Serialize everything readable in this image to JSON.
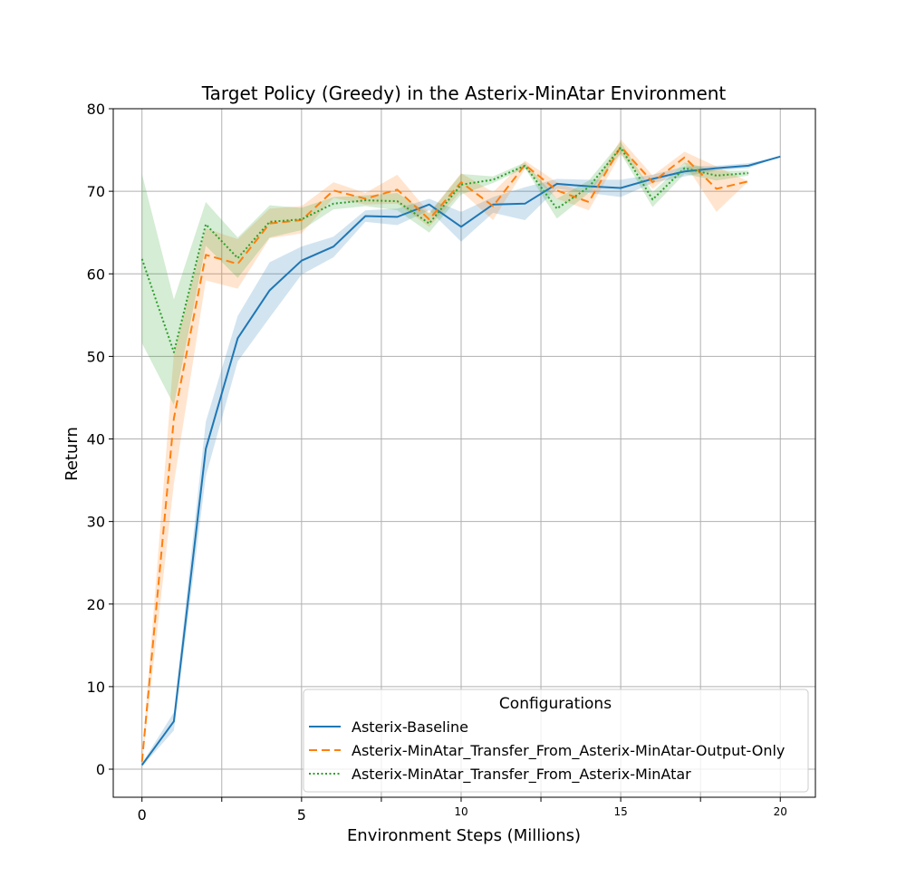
{
  "chart_data": {
    "type": "line",
    "title": "Target Policy (Greedy) in the Asterix-MinAtar Environment",
    "xlabel": "Environment Steps (Millions)",
    "ylabel": "Return",
    "xlim": [
      -0.9,
      21.1
    ],
    "ylim": [
      -3.4,
      80
    ],
    "x_ticks": [
      {
        "value": 0,
        "label": "0",
        "size": "large"
      },
      {
        "value": 2.5,
        "label": "",
        "size": "none"
      },
      {
        "value": 5,
        "label": "5",
        "size": "large"
      },
      {
        "value": 7.5,
        "label": "",
        "size": "none"
      },
      {
        "value": 10,
        "label": "10",
        "size": "small"
      },
      {
        "value": 12.5,
        "label": "",
        "size": "none"
      },
      {
        "value": 15,
        "label": "15",
        "size": "small"
      },
      {
        "value": 17.5,
        "label": "",
        "size": "none"
      },
      {
        "value": 20,
        "label": "20",
        "size": "small"
      }
    ],
    "y_ticks": [
      0,
      10,
      20,
      30,
      40,
      50,
      60,
      70,
      80
    ],
    "grid": true,
    "legend": {
      "title": "Configurations",
      "placement": "lower right"
    },
    "series": [
      {
        "name": "Asterix-Baseline",
        "color": "#1f77b4",
        "style": "solid",
        "x": [
          0,
          1,
          2,
          3,
          4,
          5,
          6,
          7,
          8,
          9,
          10,
          11,
          12,
          13,
          14,
          15,
          16,
          17,
          18,
          19,
          20
        ],
        "y": [
          0.5,
          5.8,
          38.8,
          52.2,
          58.0,
          61.6,
          63.3,
          67.0,
          66.9,
          68.4,
          65.7,
          68.4,
          68.5,
          70.9,
          70.6,
          70.4,
          71.5,
          72.4,
          72.8,
          73.1,
          74.2
        ],
        "lower": [
          0.3,
          4.7,
          35.5,
          49.4,
          54.7,
          59.9,
          62.0,
          66.3,
          65.9,
          67.7,
          63.9,
          67.4,
          66.5,
          70.3,
          69.8,
          69.3,
          71.0,
          71.8,
          72.5,
          72.8,
          74.2
        ],
        "upper": [
          0.7,
          6.9,
          42.1,
          54.9,
          61.4,
          63.3,
          64.5,
          67.7,
          67.9,
          69.1,
          67.5,
          69.3,
          70.5,
          71.5,
          71.4,
          71.4,
          72.0,
          73.0,
          73.1,
          73.4,
          74.2
        ]
      },
      {
        "name": "Asterix-MinAtar_Transfer_From_Asterix-MinAtar-Output-Only",
        "color": "#ff7f0e",
        "style": "dashed",
        "x": [
          0,
          1,
          2,
          3,
          4,
          5,
          6,
          7,
          8,
          9,
          10,
          11,
          12,
          13,
          14,
          15,
          16,
          17,
          18,
          19
        ],
        "y": [
          0.9,
          42.5,
          62.3,
          61.2,
          66.1,
          66.5,
          70.1,
          69.1,
          70.2,
          66.6,
          71.1,
          68.2,
          73.2,
          70.1,
          68.7,
          75.4,
          71.1,
          74.1,
          70.3,
          71.2
        ],
        "lower": [
          0.5,
          34.6,
          59.2,
          58.2,
          64.3,
          64.9,
          69.2,
          68.4,
          68.5,
          65.7,
          70.0,
          66.5,
          72.7,
          69.1,
          67.7,
          74.5,
          70.3,
          73.4,
          67.5,
          71.2
        ],
        "upper": [
          1.3,
          50.3,
          65.5,
          64.2,
          67.9,
          68.2,
          71.1,
          69.8,
          72.0,
          67.4,
          72.2,
          69.9,
          73.7,
          71.1,
          69.7,
          76.3,
          71.9,
          74.8,
          73.0,
          71.2
        ]
      },
      {
        "name": "Asterix-MinAtar_Transfer_From_Asterix-MinAtar",
        "color": "#2ca02c",
        "style": "dotted",
        "x": [
          0,
          1,
          2,
          3,
          4,
          5,
          6,
          7,
          8,
          9,
          10,
          11,
          12,
          13,
          14,
          15,
          16,
          17,
          18,
          19
        ],
        "y": [
          61.8,
          50.5,
          66.0,
          61.9,
          66.3,
          66.6,
          68.5,
          68.9,
          68.8,
          66.1,
          70.8,
          71.4,
          73.1,
          67.9,
          70.5,
          75.3,
          69.0,
          72.8,
          71.9,
          72.2
        ],
        "lower": [
          51.6,
          44.1,
          63.4,
          59.5,
          64.4,
          65.3,
          67.8,
          68.2,
          67.7,
          65.0,
          69.6,
          71.0,
          72.8,
          66.7,
          69.8,
          74.6,
          68.1,
          72.1,
          71.3,
          71.9
        ],
        "upper": [
          72.1,
          56.9,
          68.7,
          64.4,
          68.3,
          68.0,
          69.3,
          69.5,
          69.8,
          67.3,
          72.1,
          71.8,
          73.5,
          69.1,
          71.3,
          76.0,
          69.9,
          73.5,
          72.5,
          72.5
        ]
      }
    ]
  }
}
